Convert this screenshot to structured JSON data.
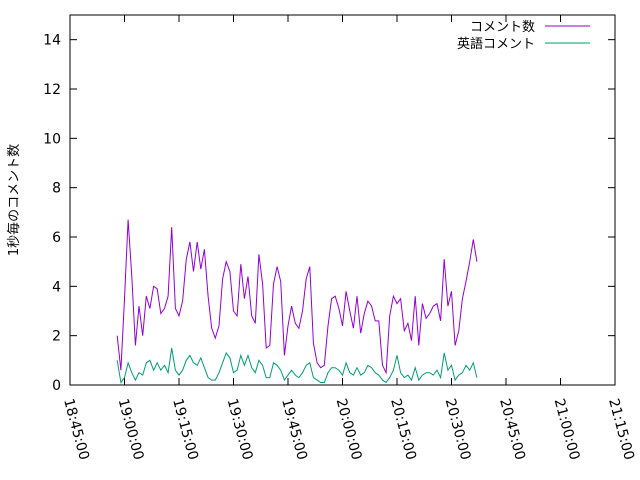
{
  "chart_data": {
    "type": "line",
    "title": "",
    "xlabel": "",
    "ylabel": "1秒毎のコメント数",
    "xlim": [
      "18:45:00",
      "21:15:00"
    ],
    "ylim": [
      0,
      15
    ],
    "x_ticks": [
      "18:45:00",
      "19:00:00",
      "19:15:00",
      "19:30:00",
      "19:45:00",
      "20:00:00",
      "20:15:00",
      "20:30:00",
      "20:45:00",
      "21:00:00",
      "21:15:00"
    ],
    "y_ticks": [
      "0",
      "2",
      "4",
      "6",
      "8",
      "10",
      "12",
      "14"
    ],
    "grid": false,
    "legend_position": "top-right",
    "x_start": "18:58:00",
    "x_step": "00:01:00",
    "series": [
      {
        "name": "コメント数",
        "color": "#9400d3",
        "values": [
          2.0,
          0.6,
          3.5,
          6.7,
          4.4,
          1.6,
          3.2,
          2.0,
          3.6,
          3.1,
          4.0,
          3.9,
          2.9,
          3.1,
          3.6,
          6.4,
          3.1,
          2.8,
          3.4,
          5.1,
          5.8,
          4.6,
          5.8,
          4.7,
          5.5,
          3.6,
          2.3,
          1.9,
          2.4,
          4.3,
          5.0,
          4.6,
          3.0,
          2.8,
          4.9,
          3.5,
          4.4,
          2.8,
          2.5,
          5.3,
          4.1,
          1.5,
          1.6,
          4.1,
          4.8,
          4.2,
          1.2,
          2.4,
          3.2,
          2.5,
          2.3,
          3.0,
          4.3,
          4.8,
          1.7,
          0.9,
          0.7,
          0.8,
          2.4,
          3.5,
          3.6,
          3.1,
          2.4,
          3.8,
          3.0,
          2.3,
          3.6,
          2.1,
          2.9,
          3.4,
          3.2,
          2.6,
          2.6,
          0.8,
          0.5,
          2.8,
          3.6,
          3.3,
          3.5,
          2.2,
          2.5,
          1.8,
          3.6,
          1.6,
          3.3,
          2.7,
          2.9,
          3.2,
          3.3,
          2.6,
          5.1,
          3.2,
          3.8,
          1.6,
          2.2,
          3.5,
          4.2,
          5.0,
          5.9,
          5.0
        ]
      },
      {
        "name": "英語コメント",
        "color": "#009e73",
        "values": [
          1.0,
          0.1,
          0.3,
          0.9,
          0.5,
          0.2,
          0.5,
          0.4,
          0.9,
          1.0,
          0.6,
          0.9,
          0.6,
          0.8,
          0.5,
          1.5,
          0.6,
          0.4,
          0.6,
          1.0,
          1.2,
          0.9,
          0.8,
          1.1,
          0.7,
          0.3,
          0.2,
          0.2,
          0.5,
          0.9,
          1.3,
          1.1,
          0.5,
          0.6,
          1.2,
          0.8,
          1.2,
          0.7,
          0.5,
          1.0,
          0.8,
          0.3,
          0.3,
          0.9,
          0.8,
          0.6,
          0.2,
          0.4,
          0.6,
          0.4,
          0.3,
          0.5,
          0.8,
          0.9,
          0.3,
          0.2,
          0.1,
          0.1,
          0.5,
          0.7,
          0.7,
          0.6,
          0.4,
          0.9,
          0.5,
          0.4,
          0.7,
          0.4,
          0.5,
          0.8,
          0.7,
          0.5,
          0.4,
          0.2,
          0.1,
          0.3,
          0.6,
          1.2,
          0.5,
          0.3,
          0.4,
          0.2,
          0.7,
          0.2,
          0.4,
          0.5,
          0.5,
          0.4,
          0.6,
          0.3,
          1.3,
          0.6,
          0.8,
          0.2,
          0.4,
          0.5,
          0.8,
          0.6,
          0.9,
          0.3
        ]
      }
    ]
  }
}
